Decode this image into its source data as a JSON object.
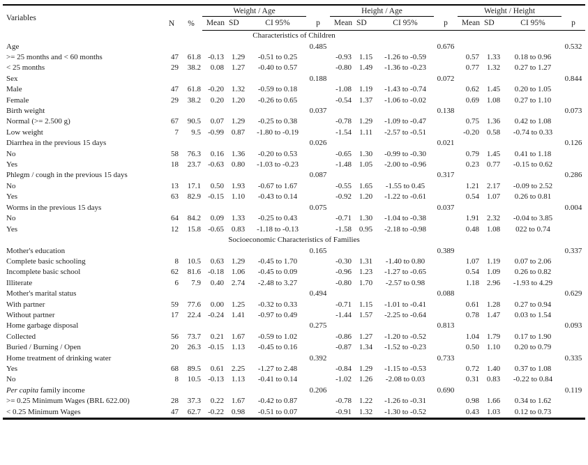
{
  "header": {
    "variables": "Variables",
    "n": "N",
    "pct": "%",
    "groups": [
      "Weight / Age",
      "Height / Age",
      "Weight / Height"
    ],
    "sub": {
      "mean": "Mean",
      "sd": "SD",
      "ci": "CI 95%",
      "p": "p"
    }
  },
  "sections": [
    {
      "title": "Characteristics of Children",
      "rows": [
        {
          "label": "Age",
          "n": "",
          "pct": "",
          "wa": [
            "",
            "",
            "",
            "0.485"
          ],
          "ha": [
            "",
            "",
            "",
            "0.676"
          ],
          "wh": [
            "",
            "",
            "",
            "0.532"
          ]
        },
        {
          "label": ">= 25 months and < 60 months",
          "n": "47",
          "pct": "61.8",
          "wa": [
            "-0.13",
            "1.29",
            "-0.51 to 0.25",
            ""
          ],
          "ha": [
            "-0.93",
            "1.15",
            "-1.26 to -0.59",
            ""
          ],
          "wh": [
            "0.57",
            "1.33",
            "0.18 to 0.96",
            ""
          ]
        },
        {
          "label": "< 25 months",
          "n": "29",
          "pct": "38.2",
          "wa": [
            "0.08",
            "1.27",
            "-0.40 to 0.57",
            ""
          ],
          "ha": [
            "-0.80",
            "1.49",
            "-1.36 to -0.23",
            ""
          ],
          "wh": [
            "0.77",
            "1.32",
            "0.27 to 1.27",
            ""
          ]
        },
        {
          "label": "Sex",
          "n": "",
          "pct": "",
          "wa": [
            "",
            "",
            "",
            "0.188"
          ],
          "ha": [
            "",
            "",
            "",
            "0.072"
          ],
          "wh": [
            "",
            "",
            "",
            "0.844"
          ]
        },
        {
          "label": "Male",
          "n": "47",
          "pct": "61.8",
          "wa": [
            "-0.20",
            "1.32",
            "-0.59 to 0.18",
            ""
          ],
          "ha": [
            "-1.08",
            "1.19",
            "-1.43 to -0.74",
            ""
          ],
          "wh": [
            "0.62",
            "1.45",
            "0.20 to 1.05",
            ""
          ]
        },
        {
          "label": "Female",
          "n": "29",
          "pct": "38.2",
          "wa": [
            "0.20",
            "1.20",
            "-0.26 to 0.65",
            ""
          ],
          "ha": [
            "-0.54",
            "1.37",
            "-1.06 to -0.02",
            ""
          ],
          "wh": [
            "0.69",
            "1.08",
            "0.27 to 1.10",
            ""
          ]
        },
        {
          "label": "Birth weight",
          "n": "",
          "pct": "",
          "wa": [
            "",
            "",
            "",
            "0.037"
          ],
          "ha": [
            "",
            "",
            "",
            "0.138"
          ],
          "wh": [
            "",
            "",
            "",
            "0.073"
          ]
        },
        {
          "label": "Normal (>= 2.500 g)",
          "n": "67",
          "pct": "90.5",
          "wa": [
            "0.07",
            "1.29",
            "-0.25 to 0.38",
            ""
          ],
          "ha": [
            "-0.78",
            "1.29",
            "-1.09 to -0.47",
            ""
          ],
          "wh": [
            "0.75",
            "1.36",
            "0.42 to 1.08",
            ""
          ]
        },
        {
          "label": "Low weight",
          "n": "7",
          "pct": "9.5",
          "wa": [
            "-0.99",
            "0.87",
            "-1.80 to -0.19",
            ""
          ],
          "ha": [
            "-1.54",
            "1.11",
            "-2.57 to -0.51",
            ""
          ],
          "wh": [
            "-0.20",
            "0.58",
            "-0.74 to 0.33",
            ""
          ]
        },
        {
          "label": "Diarrhea in the previous 15 days",
          "n": "",
          "pct": "",
          "wa": [
            "",
            "",
            "",
            "0.026"
          ],
          "ha": [
            "",
            "",
            "",
            "0.021"
          ],
          "wh": [
            "",
            "",
            "",
            "0.126"
          ]
        },
        {
          "label": "No",
          "n": "58",
          "pct": "76.3",
          "wa": [
            "0.16",
            "1.36",
            "-0.20 to 0.53",
            ""
          ],
          "ha": [
            "-0.65",
            "1.30",
            "-0.99 to -0.30",
            ""
          ],
          "wh": [
            "0.79",
            "1.45",
            "0.41 to 1.18",
            ""
          ]
        },
        {
          "label": "Yes",
          "n": "18",
          "pct": "23.7",
          "wa": [
            "-0.63",
            "0.80",
            "-1.03 to -0.23",
            ""
          ],
          "ha": [
            "-1.48",
            "1.05",
            "-2.00 to -0.96",
            ""
          ],
          "wh": [
            "0.23",
            "0.77",
            "-0.15 to 0.62",
            ""
          ]
        },
        {
          "label": "Phlegm / cough in the previous 15 days",
          "n": "",
          "pct": "",
          "wa": [
            "",
            "",
            "",
            "0.087"
          ],
          "ha": [
            "",
            "",
            "",
            "0.317"
          ],
          "wh": [
            "",
            "",
            "",
            "0.286"
          ]
        },
        {
          "label": "No",
          "n": "13",
          "pct": "17.1",
          "wa": [
            "0.50",
            "1.93",
            "-0.67 to 1.67",
            ""
          ],
          "ha": [
            "-0.55",
            "1.65",
            "-1.55 to 0.45",
            ""
          ],
          "wh": [
            "1.21",
            "2.17",
            "-0.09 to 2.52",
            ""
          ]
        },
        {
          "label": "Yes",
          "n": "63",
          "pct": "82.9",
          "wa": [
            "-0.15",
            "1.10",
            "-0.43 to 0.14",
            ""
          ],
          "ha": [
            "-0.92",
            "1.20",
            "-1.22 to -0.61",
            ""
          ],
          "wh": [
            "0.54",
            "1.07",
            "0.26 to 0.81",
            ""
          ]
        },
        {
          "label": "Worms in the previous 15 days",
          "n": "",
          "pct": "",
          "wa": [
            "",
            "",
            "",
            "0.075"
          ],
          "ha": [
            "",
            "",
            "",
            "0.037"
          ],
          "wh": [
            "",
            "",
            "",
            "0.004"
          ]
        },
        {
          "label": "No",
          "n": "64",
          "pct": "84.2",
          "wa": [
            "0.09",
            "1.33",
            "-0.25 to 0.43",
            ""
          ],
          "ha": [
            "-0.71",
            "1.30",
            "-1.04 to -0.38",
            ""
          ],
          "wh": [
            "1.91",
            "2.32",
            "-0.04 to 3.85",
            ""
          ]
        },
        {
          "label": "Yes",
          "n": "12",
          "pct": "15.8",
          "wa": [
            "-0.65",
            "0.83",
            "-1.18 to -0.13",
            ""
          ],
          "ha": [
            "-1.58",
            "0.95",
            "-2.18 to -0.98",
            ""
          ],
          "wh": [
            "0.48",
            "1.08",
            "022 to 0.74",
            ""
          ]
        }
      ]
    },
    {
      "title": "Socioeconomic Characteristics of Families",
      "rows": [
        {
          "label": "Mother's education",
          "n": "",
          "pct": "",
          "wa": [
            "",
            "",
            "",
            "0.165"
          ],
          "ha": [
            "",
            "",
            "",
            "0.389"
          ],
          "wh": [
            "",
            "",
            "",
            "0.337"
          ]
        },
        {
          "label": "Complete basic schooling",
          "n": "8",
          "pct": "10.5",
          "wa": [
            "0.63",
            "1.29",
            "-0.45 to 1.70",
            ""
          ],
          "ha": [
            "-0.30",
            "1.31",
            "-1.40 to 0.80",
            ""
          ],
          "wh": [
            "1.07",
            "1.19",
            "0.07 to 2.06",
            ""
          ]
        },
        {
          "label": "Incomplete basic school",
          "n": "62",
          "pct": "81.6",
          "wa": [
            "-0.18",
            "1.06",
            "-0.45 to 0.09",
            ""
          ],
          "ha": [
            "-0.96",
            "1.23",
            "-1.27 to -0.65",
            ""
          ],
          "wh": [
            "0.54",
            "1.09",
            "0.26 to 0.82",
            ""
          ]
        },
        {
          "label": "Illiterate",
          "n": "6",
          "pct": "7.9",
          "wa": [
            "0.40",
            "2.74",
            "-2.48 to 3.27",
            ""
          ],
          "ha": [
            "-0.80",
            "1.70",
            "-2.57 to 0.98",
            ""
          ],
          "wh": [
            "1.18",
            "2.96",
            "-1.93 to 4.29",
            ""
          ]
        },
        {
          "label": "Mother's marital status",
          "n": "",
          "pct": "",
          "wa": [
            "",
            "",
            "",
            "0.494"
          ],
          "ha": [
            "",
            "",
            "",
            "0.088"
          ],
          "wh": [
            "",
            "",
            "",
            "0.629"
          ]
        },
        {
          "label": "With partner",
          "n": "59",
          "pct": "77.6",
          "wa": [
            "0.00",
            "1.25",
            "-0.32 to 0.33",
            ""
          ],
          "ha": [
            "-0.71",
            "1.15",
            "-1.01 to -0.41",
            ""
          ],
          "wh": [
            "0.61",
            "1.28",
            "0.27 to 0.94",
            ""
          ]
        },
        {
          "label": "Without partner",
          "n": "17",
          "pct": "22.4",
          "wa": [
            "-0.24",
            "1.41",
            "-0.97 to 0.49",
            ""
          ],
          "ha": [
            "-1.44",
            "1.57",
            "-2.25 to -0.64",
            ""
          ],
          "wh": [
            "0.78",
            "1.47",
            "0.03 to 1.54",
            ""
          ]
        },
        {
          "label": "Home garbage disposal",
          "n": "",
          "pct": "",
          "wa": [
            "",
            "",
            "",
            "0.275"
          ],
          "ha": [
            "",
            "",
            "",
            "0.813"
          ],
          "wh": [
            "",
            "",
            "",
            "0.093"
          ]
        },
        {
          "label": "Collected",
          "n": "56",
          "pct": "73.7",
          "wa": [
            "0.21",
            "1.67",
            "-0.59 to 1.02",
            ""
          ],
          "ha": [
            "-0.86",
            "1.27",
            "-1.20 to -0.52",
            ""
          ],
          "wh": [
            "1.04",
            "1.79",
            "0.17 to 1.90",
            ""
          ]
        },
        {
          "label": "Buried / Burning / Open",
          "n": "20",
          "pct": "26.3",
          "wa": [
            "-0.15",
            "1.13",
            "-0.45 to 0.16",
            ""
          ],
          "ha": [
            "-0.87",
            "1.34",
            "-1.52 to -0.23",
            ""
          ],
          "wh": [
            "0.50",
            "1.10",
            "0.20 to 0.79",
            ""
          ]
        },
        {
          "label": "Home treatment of drinking water",
          "n": "",
          "pct": "",
          "wa": [
            "",
            "",
            "",
            "0.392"
          ],
          "ha": [
            "",
            "",
            "",
            "0.733"
          ],
          "wh": [
            "",
            "",
            "",
            "0.335"
          ]
        },
        {
          "label": "Yes",
          "n": "68",
          "pct": "89.5",
          "wa": [
            "0.61",
            "2.25",
            "-1.27 to 2.48",
            ""
          ],
          "ha": [
            "-0.84",
            "1.29",
            "-1.15 to -0.53",
            ""
          ],
          "wh": [
            "0.72",
            "1.40",
            "0.37 to 1.08",
            ""
          ]
        },
        {
          "label": "No",
          "n": "8",
          "pct": "10.5",
          "wa": [
            "-0.13",
            "1.13",
            "-0.41 to 0.14",
            ""
          ],
          "ha": [
            "-1.02",
            "1.26",
            "-2.08 to 0.03",
            ""
          ],
          "wh": [
            "0.31",
            "0.83",
            "-0.22 to 0.84",
            ""
          ]
        },
        {
          "label_em": "Per capita",
          "label": " family income",
          "n": "",
          "pct": "",
          "wa": [
            "",
            "",
            "",
            "0.206"
          ],
          "ha": [
            "",
            "",
            "",
            "0.690"
          ],
          "wh": [
            "",
            "",
            "",
            "0.119"
          ]
        },
        {
          "label": ">= 0.25 Minimum Wages (BRL 622.00)",
          "n": "28",
          "pct": "37.3",
          "wa": [
            "0.22",
            "1.67",
            "-0.42 to 0.87",
            ""
          ],
          "ha": [
            "-0.78",
            "1.22",
            "-1.26 to -0.31",
            ""
          ],
          "wh": [
            "0.98",
            "1.66",
            "0.34 to 1.62",
            ""
          ]
        },
        {
          "label": "< 0.25 Minimum Wages",
          "n": "47",
          "pct": "62.7",
          "wa": [
            "-0.22",
            "0.98",
            "-0.51 to 0.07",
            ""
          ],
          "ha": [
            "-0.91",
            "1.32",
            "-1.30 to -0.52",
            ""
          ],
          "wh": [
            "0.43",
            "1.03",
            "0.12 to 0.73",
            ""
          ]
        }
      ]
    }
  ]
}
